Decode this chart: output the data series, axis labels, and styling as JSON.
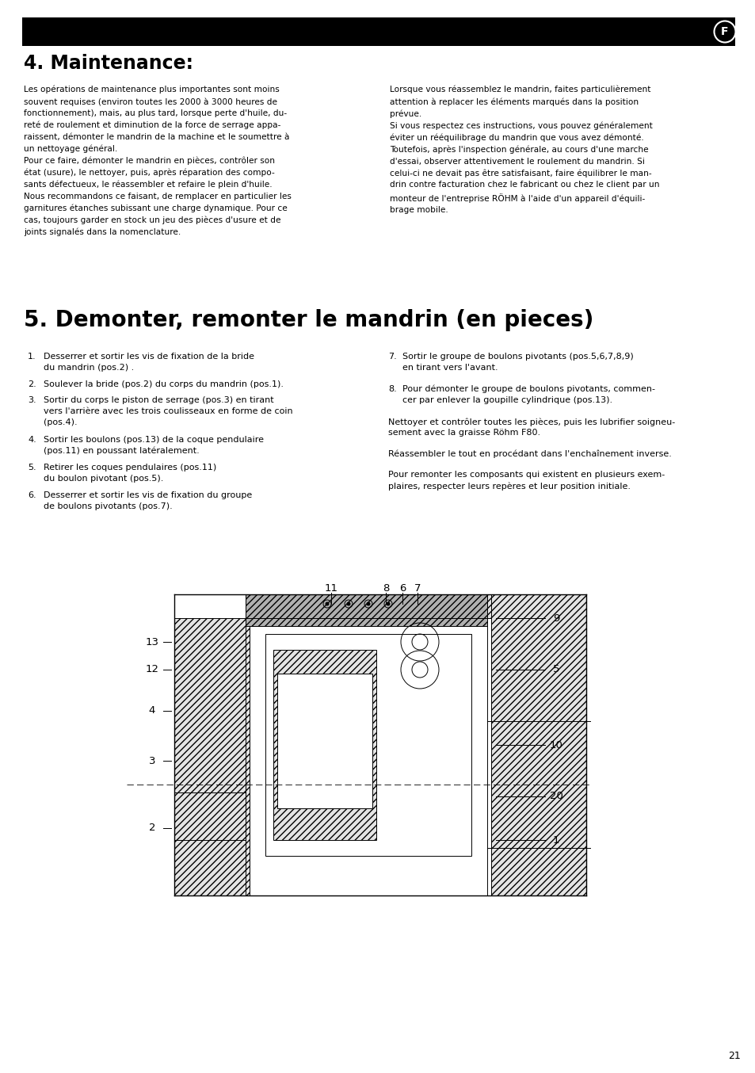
{
  "page_bg": "#ffffff",
  "text_color": "#000000",
  "header_color": "#000000",
  "header_letter": "F",
  "page_number": "21",
  "section4_title": "4. Maintenance:",
  "section4_col1": "Les opérations de maintenance plus importantes sont moins\nsouvent requises (environ toutes les 2000 à 3000 heures de\nfonctionnement), mais, au plus tard, lorsque perte d'huile, du-\nreté de roulement et diminution de la force de serrage appa-\nraissent, démonter le mandrin de la machine et le soumettre à\nun nettoyage général.\nPour ce faire, démonter le mandrin en pièces, contrôler son\nétat (usure), le nettoyer, puis, après réparation des compo-\nsants défectueux, le réassembler et refaire le plein d'huile.\nNous recommandons ce faisant, de remplacer en particulier les\ngarnitures étanches subissant une charge dynamique. Pour ce\ncas, toujours garder en stock un jeu des pièces d'usure et de\njoints signalés dans la nomenclature.",
  "section4_col2": "Lorsque vous réassemblez le mandrin, faites particulièrement\nattention à replacer les éléments marqués dans la position\nprévue.\nSi vous respectez ces instructions, vous pouvez généralement\néviter un rééquilibrage du mandrin que vous avez démonté.\nToutefois, après l'inspection générale, au cours d'une marche\nd'essai, observer attentivement le roulement du mandrin. Si\ncelui-ci ne devait pas être satisfaisant, faire équilibrer le man-\ndrin contre facturation chez le fabricant ou chez le client par un\nmonteur de l'entreprise RÖHM à l'aide d'un appareil d'équili-\nbrage mobile.",
  "section5_title": "5. Demonter, remonter le mandrin (en pieces)",
  "list_left": [
    [
      "1.",
      "Desserrer et sortir les vis de fixation de la bride\ndu mandrin (pos.2) ."
    ],
    [
      "2.",
      "Soulever la bride (pos.2) du corps du mandrin (pos.1)."
    ],
    [
      "3.",
      "Sortir du corps le piston de serrage (pos.3) en tirant\nvers l'arrière avec les trois coulisseaux en forme de coin\n(pos.4)."
    ],
    [
      "4.",
      "Sortir les boulons (pos.13) de la coque pendulaire\n(pos.11) en poussant latéralement."
    ],
    [
      "5.",
      "Retirer les coques pendulaires (pos.11)\ndu boulon pivotant (pos.5)."
    ],
    [
      "6.",
      "Desserrer et sortir les vis de fixation du groupe\nde boulons pivotants (pos.7)."
    ]
  ],
  "list_right": [
    [
      "7.",
      "Sortir le groupe de boulons pivotants (pos.5,6,7,8,9)\nen tirant vers l'avant."
    ],
    [
      "8.",
      "Pour démonter le groupe de boulons pivotants, commen-\ncer par enlever la goupille cylindrique (pos.13)."
    ],
    [
      "",
      "Nettoyer et contrôler toutes les pièces, puis les lubrifier soigneu-\nsement avec la graisse Röhm F80."
    ],
    [
      "",
      "Réassembler le tout en procédant dans l'enchaînement inverse."
    ],
    [
      "",
      "Pour remonter les composants qui existent en plusieurs exem-\nplaires, respecter leurs repères et leur position initiale."
    ]
  ],
  "top_labels": [
    [
      "11",
      418,
      742
    ],
    [
      "8",
      487,
      742
    ],
    [
      "6",
      508,
      742
    ],
    [
      "7",
      527,
      742
    ]
  ],
  "left_labels": [
    [
      "13",
      192,
      810
    ],
    [
      "12",
      192,
      845
    ],
    [
      "4",
      192,
      897
    ],
    [
      "3",
      192,
      960
    ],
    [
      "2",
      192,
      1045
    ]
  ],
  "right_labels": [
    [
      "9",
      702,
      780
    ],
    [
      "5",
      702,
      845
    ],
    [
      "10",
      702,
      940
    ],
    [
      "20",
      702,
      1005
    ],
    [
      "1",
      702,
      1060
    ]
  ]
}
